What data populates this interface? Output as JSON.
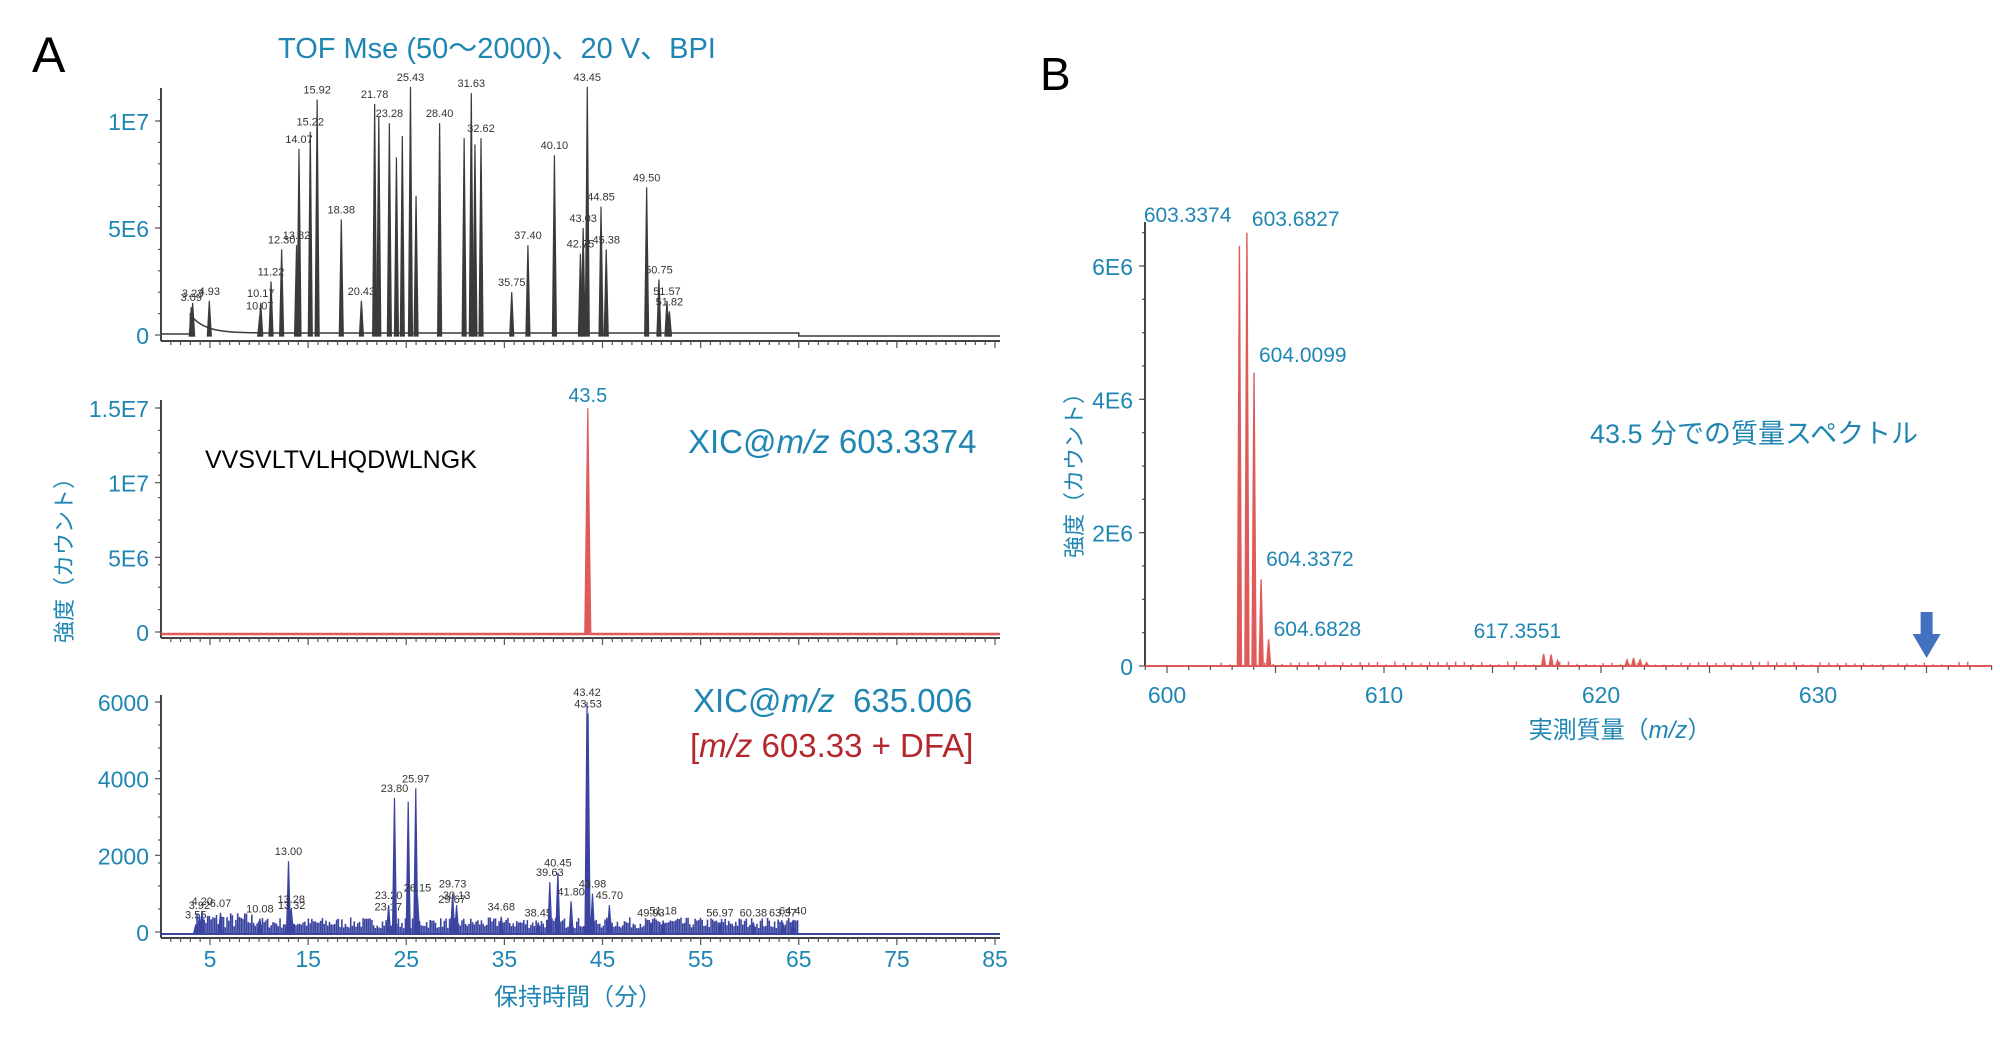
{
  "panel_labels": {
    "a": "A",
    "b": "B"
  },
  "colors": {
    "label_blue": "#1f86b3",
    "bpi_trace": "#3a3a3a",
    "xic_red": "#e05a5a",
    "xic_blue": "#3b44a0",
    "annotation_red": "#b5272d",
    "arrow_blue": "#4470c0"
  },
  "chart_data": [
    {
      "id": "A-top",
      "type": "line",
      "title": "TOF Mse (50～2000)、20 V、BPI",
      "xlabel": "保持時間（分）",
      "ylabel": "強度（カウント）",
      "xlim": [
        0,
        85
      ],
      "ylim": [
        0,
        12000000
      ],
      "yticks": [
        {
          "v": 0,
          "label": "0"
        },
        {
          "v": 5000000,
          "label": "5E6"
        },
        {
          "v": 10000000,
          "label": "1E7"
        }
      ],
      "xticks": [
        5,
        15,
        25,
        35,
        45,
        55,
        65,
        75,
        85
      ],
      "peaks": [
        {
          "x": 3.09,
          "y": 1300000,
          "label": "3.09"
        },
        {
          "x": 3.23,
          "y": 1500000,
          "label": "3.23"
        },
        {
          "x": 4.93,
          "y": 1600000,
          "label": "4.93"
        },
        {
          "x": 10.07,
          "y": 900000,
          "label": "10.07"
        },
        {
          "x": 10.17,
          "y": 1500000,
          "label": "10.17"
        },
        {
          "x": 11.22,
          "y": 2500000,
          "label": "11.22"
        },
        {
          "x": 12.3,
          "y": 4000000,
          "label": "12.30"
        },
        {
          "x": 13.82,
          "y": 4200000,
          "label": "13.82"
        },
        {
          "x": 14.07,
          "y": 8700000,
          "label": "14.07"
        },
        {
          "x": 15.22,
          "y": 9500000,
          "label": "15.22"
        },
        {
          "x": 15.92,
          "y": 11000000,
          "label": "15.92"
        },
        {
          "x": 18.38,
          "y": 5400000,
          "label": "18.38"
        },
        {
          "x": 20.43,
          "y": 1600000,
          "label": "20.43"
        },
        {
          "x": 21.78,
          "y": 10800000,
          "label": "21.78"
        },
        {
          "x": 22.2,
          "y": 10200000,
          "label": ""
        },
        {
          "x": 23.28,
          "y": 9900000,
          "label": "23.28"
        },
        {
          "x": 24.0,
          "y": 8300000,
          "label": ""
        },
        {
          "x": 24.6,
          "y": 9300000,
          "label": ""
        },
        {
          "x": 25.43,
          "y": 11600000,
          "label": "25.43"
        },
        {
          "x": 26.0,
          "y": 6500000,
          "label": ""
        },
        {
          "x": 28.4,
          "y": 9900000,
          "label": "28.40"
        },
        {
          "x": 30.9,
          "y": 9200000,
          "label": ""
        },
        {
          "x": 31.63,
          "y": 11300000,
          "label": "31.63"
        },
        {
          "x": 32.0,
          "y": 8900000,
          "label": ""
        },
        {
          "x": 32.62,
          "y": 9200000,
          "label": "32.62"
        },
        {
          "x": 35.75,
          "y": 2000000,
          "label": "35.75"
        },
        {
          "x": 37.4,
          "y": 4200000,
          "label": "37.40"
        },
        {
          "x": 40.1,
          "y": 8400000,
          "label": "40.10"
        },
        {
          "x": 42.75,
          "y": 3800000,
          "label": "42.75"
        },
        {
          "x": 43.03,
          "y": 5000000,
          "label": "43.03"
        },
        {
          "x": 43.45,
          "y": 11600000,
          "label": "43.45"
        },
        {
          "x": 44.85,
          "y": 6000000,
          "label": "44.85"
        },
        {
          "x": 45.38,
          "y": 4000000,
          "label": "45.38"
        },
        {
          "x": 49.5,
          "y": 6900000,
          "label": "49.50"
        },
        {
          "x": 50.75,
          "y": 2600000,
          "label": "50.75"
        },
        {
          "x": 51.57,
          "y": 1600000,
          "label": "51.57"
        },
        {
          "x": 51.82,
          "y": 1100000,
          "label": "51.82"
        }
      ]
    },
    {
      "id": "A-mid",
      "type": "line",
      "title": "XIC@m/z 603.3374",
      "title_prefix": "XIC@",
      "title_italic": "m/z",
      "title_value": " 603.3374",
      "annotation": "VVSVLTVLHQDWLNGK",
      "ylim": [
        0,
        15000000
      ],
      "xlim": [
        0,
        85
      ],
      "yticks": [
        {
          "v": 0,
          "label": "0"
        },
        {
          "v": 5000000,
          "label": "5E6"
        },
        {
          "v": 10000000,
          "label": "1E7"
        },
        {
          "v": 15000000,
          "label": "1.5E7"
        }
      ],
      "peaks": [
        {
          "x": 43.5,
          "y": 15000000,
          "label": "43.5"
        }
      ]
    },
    {
      "id": "A-bottom",
      "type": "line",
      "title_prefix": "XIC@",
      "title_italic": "m/z",
      "title_value": "  635.006",
      "subtitle_open": "[",
      "subtitle_italic": "m/z",
      "subtitle_value": " 603.33 + DFA]",
      "ylim": [
        0,
        6000
      ],
      "xlim": [
        0,
        85
      ],
      "xlabel": "保持時間（分）",
      "yticks": [
        {
          "v": 0,
          "label": "0"
        },
        {
          "v": 2000,
          "label": "2000"
        },
        {
          "v": 4000,
          "label": "4000"
        },
        {
          "v": 6000,
          "label": "6000"
        }
      ],
      "xticks": [
        5,
        15,
        25,
        35,
        45,
        55,
        65,
        75,
        85
      ],
      "peaks": [
        {
          "x": 3.55,
          "y": 200,
          "label": "3.55"
        },
        {
          "x": 3.92,
          "y": 450,
          "label": "3.92"
        },
        {
          "x": 4.2,
          "y": 550,
          "label": "4.20"
        },
        {
          "x": 6.07,
          "y": 500,
          "label": "6.07"
        },
        {
          "x": 10.08,
          "y": 350,
          "label": "10.08"
        },
        {
          "x": 13.0,
          "y": 1850,
          "label": "13.00"
        },
        {
          "x": 13.28,
          "y": 600,
          "label": "13.28"
        },
        {
          "x": 13.32,
          "y": 450,
          "label": "13.32"
        },
        {
          "x": 23.17,
          "y": 400,
          "label": "23.17"
        },
        {
          "x": 23.2,
          "y": 700,
          "label": "23.20"
        },
        {
          "x": 23.8,
          "y": 3500,
          "label": "23.80"
        },
        {
          "x": 25.2,
          "y": 3400,
          "label": ""
        },
        {
          "x": 25.97,
          "y": 3750,
          "label": "25.97"
        },
        {
          "x": 26.15,
          "y": 900,
          "label": "26.15"
        },
        {
          "x": 29.67,
          "y": 600,
          "label": "29.67"
        },
        {
          "x": 29.73,
          "y": 1000,
          "label": "29.73"
        },
        {
          "x": 30.13,
          "y": 700,
          "label": "30.13"
        },
        {
          "x": 34.68,
          "y": 400,
          "label": "34.68"
        },
        {
          "x": 38.45,
          "y": 250,
          "label": "38.45"
        },
        {
          "x": 39.63,
          "y": 1300,
          "label": "39.63"
        },
        {
          "x": 40.45,
          "y": 1550,
          "label": "40.45"
        },
        {
          "x": 41.8,
          "y": 800,
          "label": "41.80"
        },
        {
          "x": 43.42,
          "y": 6000,
          "label": "43.42"
        },
        {
          "x": 43.53,
          "y": 5700,
          "label": "43.53"
        },
        {
          "x": 43.98,
          "y": 1000,
          "label": "43.98"
        },
        {
          "x": 45.7,
          "y": 700,
          "label": "45.70"
        },
        {
          "x": 49.93,
          "y": 250,
          "label": "49.93"
        },
        {
          "x": 51.18,
          "y": 300,
          "label": "51.18"
        },
        {
          "x": 56.97,
          "y": 250,
          "label": "56.97"
        },
        {
          "x": 60.38,
          "y": 250,
          "label": "60.38"
        },
        {
          "x": 63.37,
          "y": 250,
          "label": "63.37"
        },
        {
          "x": 64.4,
          "y": 300,
          "label": "64.40"
        }
      ]
    },
    {
      "id": "B",
      "type": "bar",
      "title": "43.5 分での質量スペクトル",
      "xlabel_prefix": "実測質量（",
      "xlabel_italic": "m/z",
      "xlabel_suffix": "）",
      "ylabel": "強度（カウント）",
      "xlim": [
        599,
        638
      ],
      "ylim": [
        0,
        6600000
      ],
      "yticks": [
        {
          "v": 0,
          "label": "0"
        },
        {
          "v": 2000000,
          "label": "2E6"
        },
        {
          "v": 4000000,
          "label": "4E6"
        },
        {
          "v": 6000000,
          "label": "6E6"
        }
      ],
      "xticks": [
        600,
        610,
        620,
        630
      ],
      "peaks": [
        {
          "x": 603.3374,
          "y": 6300000,
          "label": "603.3374"
        },
        {
          "x": 603.6827,
          "y": 6500000,
          "label": "603.6827"
        },
        {
          "x": 604.0099,
          "y": 4400000,
          "label": "604.0099"
        },
        {
          "x": 604.3372,
          "y": 1300000,
          "label": "604.3372"
        },
        {
          "x": 604.6828,
          "y": 400000,
          "label": "604.6828"
        },
        {
          "x": 617.3551,
          "y": 180000,
          "label": "617.3551"
        },
        {
          "x": 617.7,
          "y": 170000,
          "label": ""
        },
        {
          "x": 618.0,
          "y": 80000,
          "label": ""
        },
        {
          "x": 621.2,
          "y": 90000,
          "label": ""
        },
        {
          "x": 621.5,
          "y": 120000,
          "label": ""
        },
        {
          "x": 621.8,
          "y": 90000,
          "label": ""
        },
        {
          "x": 622.1,
          "y": 50000,
          "label": ""
        }
      ],
      "arrow_marker": {
        "x": 635.006,
        "icon": "down-arrow-icon"
      }
    }
  ]
}
